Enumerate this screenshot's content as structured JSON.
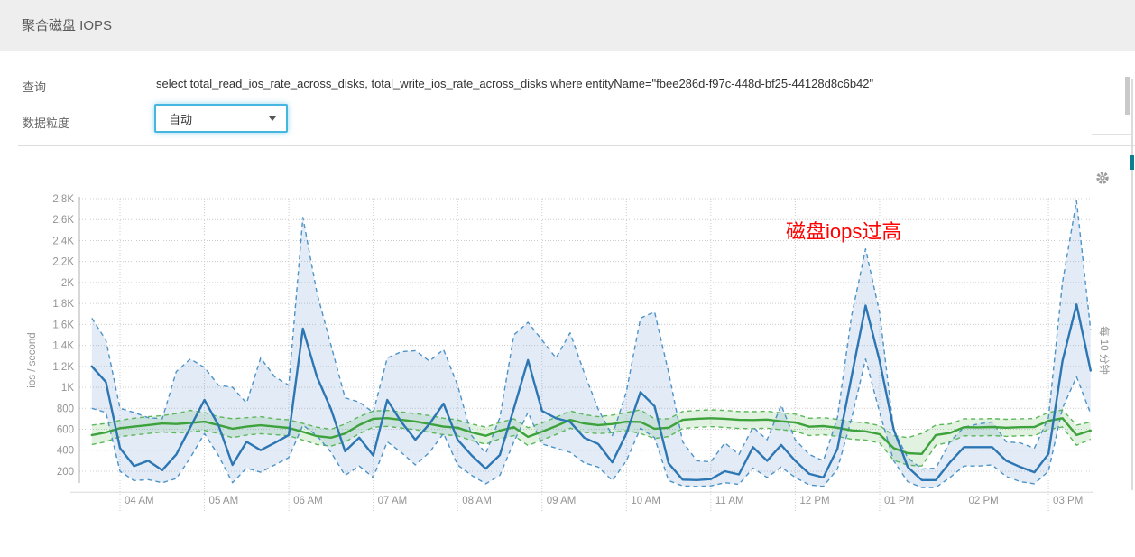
{
  "panel": {
    "title": "聚合磁盘 IOPS"
  },
  "form": {
    "query_label": "查询",
    "query_value": "select total_read_ios_rate_across_disks, total_write_ios_rate_across_disks where entityName=\"fbee286d-f97c-448d-bf25-44128d8c6b42\"",
    "granularity_label": "数据粒度",
    "granularity_value": "自动"
  },
  "icons": {
    "gear": "settings-gear",
    "caret": "dropdown-caret"
  },
  "chart_data": {
    "type": "line",
    "title": "聚合磁盘 IOPS",
    "ylabel": "ios / second",
    "interval_label": "每 10 分钟",
    "annotation": {
      "text": "磁盘iops过高",
      "color": "#ff0000"
    },
    "legend": "none",
    "grid": true,
    "ylim": [
      0,
      2900
    ],
    "xlim_hours": [
      3.55,
      15.55
    ],
    "x_start_hour": 3.6667,
    "x_step_minutes": 10,
    "x_tick_hours": [
      4,
      5,
      6,
      7,
      8,
      9,
      10,
      11,
      12,
      13,
      14,
      15
    ],
    "x_tick_labels": [
      "04 AM",
      "05 AM",
      "06 AM",
      "07 AM",
      "08 AM",
      "09 AM",
      "10 AM",
      "11 AM",
      "12 PM",
      "01 PM",
      "02 PM",
      "03 PM"
    ],
    "y_tick_values": [
      200,
      400,
      600,
      800,
      1000,
      1200,
      1400,
      1600,
      1800,
      2000,
      2200,
      2400,
      2600,
      2800
    ],
    "y_tick_labels": [
      "200",
      "400",
      "600",
      "800",
      "1K",
      "1.2K",
      "1.4K",
      "1.6K",
      "1.8K",
      "2K",
      "2.2K",
      "2.4K",
      "2.6K",
      "2.8K"
    ],
    "series": [
      {
        "name": "total_read_ios_rate_across_disks",
        "color": "#2d76b4",
        "dash_color": "#4d93c8",
        "band_color": "rgba(98,149,205,0.18)",
        "values": [
          1200,
          1050,
          420,
          250,
          300,
          210,
          360,
          620,
          880,
          640,
          260,
          480,
          400,
          470,
          545,
          1560,
          1100,
          790,
          390,
          520,
          350,
          880,
          670,
          500,
          650,
          845,
          500,
          350,
          225,
          355,
          800,
          1260,
          775,
          705,
          670,
          520,
          460,
          285,
          560,
          955,
          820,
          275,
          120,
          115,
          125,
          200,
          170,
          430,
          300,
          450,
          300,
          175,
          140,
          415,
          1100,
          1780,
          1250,
          600,
          240,
          115,
          115,
          285,
          430,
          430,
          430,
          300,
          240,
          190,
          365,
          1250,
          1790,
          1160
        ],
        "band_upper": [
          1660,
          1450,
          800,
          760,
          710,
          700,
          1150,
          1270,
          1190,
          1020,
          1000,
          850,
          1280,
          1100,
          1020,
          2620,
          1900,
          1400,
          900,
          860,
          760,
          1280,
          1340,
          1350,
          1250,
          1360,
          1020,
          540,
          370,
          710,
          1500,
          1620,
          1450,
          1280,
          1520,
          1140,
          790,
          540,
          960,
          1660,
          1720,
          1140,
          480,
          300,
          290,
          470,
          360,
          620,
          500,
          830,
          500,
          360,
          300,
          710,
          1680,
          2320,
          1710,
          590,
          330,
          220,
          230,
          480,
          620,
          650,
          670,
          480,
          470,
          420,
          710,
          2000,
          2780,
          1550
        ],
        "band_lower": [
          800,
          760,
          200,
          110,
          120,
          90,
          130,
          330,
          560,
          350,
          90,
          230,
          190,
          260,
          330,
          640,
          540,
          380,
          160,
          250,
          140,
          480,
          380,
          260,
          380,
          560,
          260,
          160,
          80,
          160,
          480,
          760,
          460,
          420,
          380,
          280,
          240,
          110,
          300,
          610,
          520,
          110,
          60,
          55,
          60,
          90,
          75,
          230,
          140,
          240,
          140,
          70,
          55,
          220,
          700,
          1270,
          760,
          300,
          100,
          45,
          45,
          140,
          250,
          250,
          260,
          150,
          100,
          80,
          200,
          800,
          1100,
          750
        ]
      },
      {
        "name": "total_write_ios_rate_across_disks",
        "color": "#3da23c",
        "dash_color": "#5cb75a",
        "band_color": "rgba(92,183,90,0.18)",
        "values": [
          545,
          570,
          610,
          625,
          640,
          655,
          650,
          660,
          672,
          640,
          605,
          625,
          638,
          625,
          613,
          575,
          535,
          520,
          560,
          640,
          700,
          706,
          690,
          674,
          650,
          625,
          615,
          570,
          538,
          587,
          620,
          528,
          578,
          630,
          690,
          655,
          640,
          650,
          672,
          670,
          605,
          615,
          690,
          700,
          705,
          700,
          690,
          688,
          692,
          676,
          665,
          624,
          630,
          615,
          590,
          580,
          553,
          420,
          372,
          365,
          545,
          565,
          620,
          618,
          622,
          615,
          620,
          622,
          680,
          705,
          545,
          588
        ],
        "band_upper": [
          640,
          655,
          685,
          705,
          720,
          730,
          750,
          780,
          760,
          720,
          700,
          710,
          720,
          700,
          690,
          655,
          620,
          600,
          650,
          720,
          775,
          780,
          765,
          750,
          730,
          705,
          690,
          650,
          620,
          665,
          700,
          615,
          660,
          715,
          775,
          740,
          720,
          735,
          760,
          785,
          700,
          700,
          770,
          780,
          785,
          780,
          770,
          768,
          772,
          756,
          745,
          705,
          710,
          695,
          672,
          660,
          635,
          540,
          520,
          560,
          640,
          650,
          700,
          698,
          702,
          695,
          700,
          702,
          760,
          785,
          640,
          668
        ],
        "band_lower": [
          455,
          480,
          530,
          545,
          560,
          575,
          565,
          575,
          590,
          560,
          520,
          545,
          558,
          548,
          538,
          498,
          455,
          440,
          478,
          558,
          620,
          628,
          612,
          596,
          572,
          548,
          538,
          492,
          458,
          510,
          540,
          445,
          498,
          550,
          610,
          572,
          558,
          568,
          588,
          560,
          512,
          530,
          608,
          618,
          625,
          618,
          608,
          606,
          610,
          595,
          582,
          540,
          548,
          532,
          505,
          498,
          468,
          305,
          258,
          250,
          448,
          478,
          538,
          536,
          540,
          532,
          538,
          540,
          598,
          622,
          448,
          505
        ]
      }
    ]
  }
}
